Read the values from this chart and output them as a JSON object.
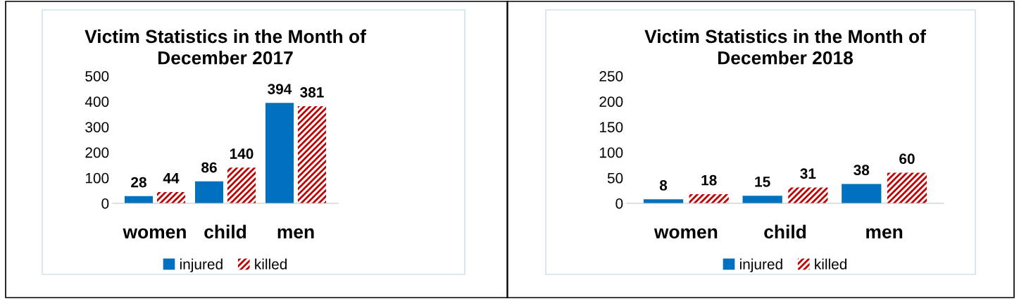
{
  "chart_data": [
    {
      "type": "bar",
      "title": "Victim Statistics in the Month of\nDecember 2017",
      "categories": [
        "women",
        "child",
        "men"
      ],
      "series": [
        {
          "name": "injured",
          "color": "#0070c0",
          "values": [
            28,
            86,
            394
          ]
        },
        {
          "name": "killed",
          "color": "#c00000",
          "values": [
            44,
            140,
            381
          ]
        }
      ],
      "ylim": [
        0,
        500
      ],
      "yticks": [
        0,
        100,
        200,
        300,
        400,
        500
      ],
      "data_labels": true,
      "legend": "bottom",
      "grid": false
    },
    {
      "type": "bar",
      "title": "Victim Statistics in the Month of\nDecember 2018",
      "categories": [
        "women",
        "child",
        "men"
      ],
      "series": [
        {
          "name": "injured",
          "color": "#0070c0",
          "values": [
            8,
            15,
            38
          ]
        },
        {
          "name": "killed",
          "color": "#c00000",
          "values": [
            18,
            31,
            60
          ]
        }
      ],
      "ylim": [
        0,
        250
      ],
      "yticks": [
        0,
        50,
        100,
        150,
        200,
        250
      ],
      "data_labels": true,
      "legend": "bottom",
      "grid": false
    }
  ]
}
